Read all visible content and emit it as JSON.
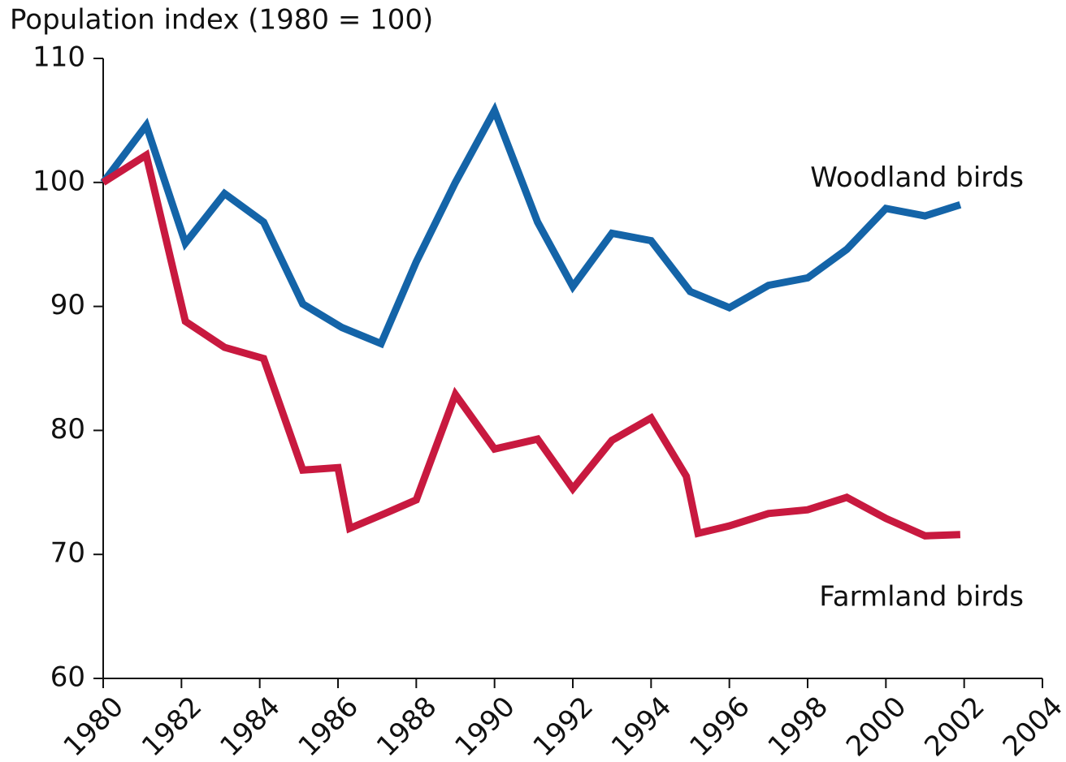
{
  "chart_data": {
    "type": "line",
    "title": "Population index (1980 = 100)",
    "xlim": [
      1980,
      2004
    ],
    "xticks": [
      1980,
      1982,
      1984,
      1986,
      1988,
      1990,
      1992,
      1994,
      1996,
      1998,
      2000,
      2002,
      2004
    ],
    "ylim": [
      60,
      110
    ],
    "yticks": [
      60,
      70,
      80,
      90,
      100,
      110
    ],
    "series": [
      {
        "name": "Woodland birds",
        "color": "#1464a8",
        "x": [
          1980,
          1981.1,
          1982.1,
          1983.1,
          1984.1,
          1985.1,
          1986.1,
          1987.1,
          1988,
          1989,
          1990,
          1991.1,
          1992,
          1993,
          1994,
          1995,
          1996,
          1997,
          1998,
          1999,
          2000,
          2001,
          2001.9
        ],
        "values": [
          100,
          104.6,
          95.1,
          99.1,
          96.8,
          90.2,
          88.3,
          87.0,
          93.6,
          100,
          105.8,
          96.8,
          91.6,
          95.9,
          95.3,
          91.2,
          89.9,
          91.7,
          92.3,
          94.6,
          97.9,
          97.3,
          98.2
        ]
      },
      {
        "name": "Farmland birds",
        "color": "#c8193f",
        "x": [
          1980,
          1981.1,
          1982.1,
          1983.1,
          1984.1,
          1985.1,
          1986,
          1986.3,
          1987.2,
          1988,
          1989,
          1990,
          1991.1,
          1992,
          1993,
          1994,
          1994.9,
          1995.2,
          1996,
          1997,
          1998,
          1999,
          2000,
          2001,
          2001.9
        ],
        "values": [
          100,
          102.2,
          88.8,
          86.7,
          85.8,
          76.8,
          77.0,
          72.1,
          73.3,
          74.4,
          82.9,
          78.5,
          79.3,
          75.3,
          79.2,
          81.0,
          76.3,
          71.7,
          72.3,
          73.3,
          73.6,
          74.6,
          72.9,
          71.5,
          71.6
        ]
      }
    ]
  }
}
